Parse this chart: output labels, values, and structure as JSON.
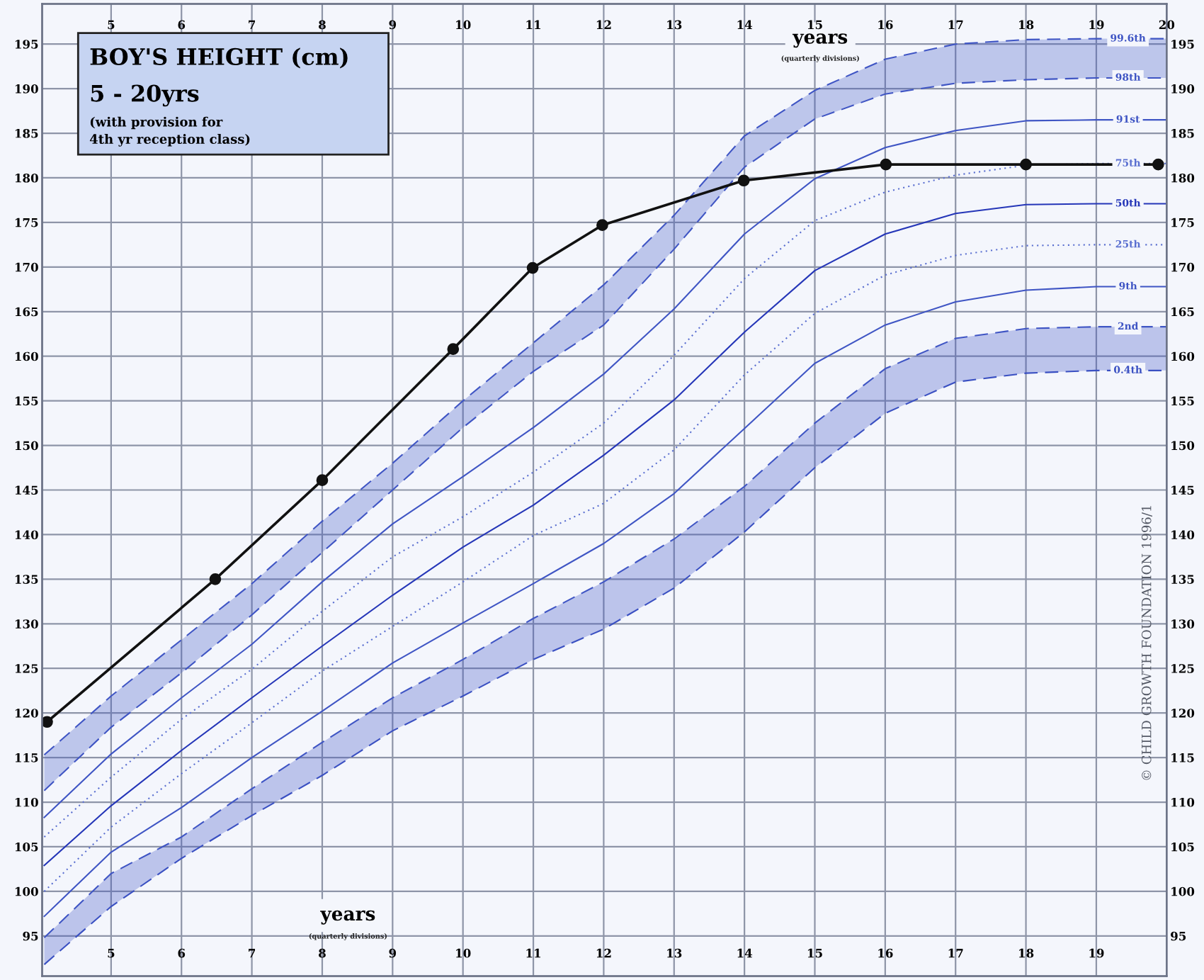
{
  "chart_data": {
    "type": "line",
    "title": "BOY'S HEIGHT (cm)",
    "subtitle": "5 - 20yrs",
    "xlabel": "years",
    "x2label": "years",
    "annotations": [
      "(with provision for\n4th yr reception class)",
      "(quarterly divisions)",
      "(quarterly divisions)",
      "© CHILD GROWTH FOUNDATION 1996/1"
    ],
    "x": [
      4.05,
      5,
      6,
      7,
      8,
      9,
      10,
      11,
      12,
      13,
      14,
      15,
      16,
      17,
      18,
      19,
      20
    ],
    "series": [
      {
        "name": "99.6th",
        "color": "#3f55c4",
        "line_style": "dashed",
        "values": [
          115.3,
          121.9,
          128.2,
          134.5,
          141.5,
          148.0,
          155.0,
          161.5,
          168.0,
          175.8,
          184.7,
          189.8,
          193.3,
          195.0,
          195.5,
          195.6,
          195.6
        ],
        "lower": [
          111.3,
          118.4,
          124.5,
          131.0,
          138.0,
          145.0,
          152.0,
          158.3,
          163.5,
          172.0,
          181.2,
          186.6,
          189.4,
          190.6,
          191.0,
          191.2,
          191.2
        ],
        "upper": [
          115.3,
          121.9,
          128.2,
          134.5,
          141.5,
          148.0,
          155.0,
          161.5,
          168.0,
          175.8,
          184.7,
          189.8,
          193.3,
          195.0,
          195.5,
          195.6,
          195.6
        ]
      },
      {
        "name": "98th",
        "color": "#3f55c4",
        "line_style": "dashed",
        "values": [
          111.3,
          118.4,
          124.5,
          131.0,
          138.0,
          145.0,
          152.0,
          158.3,
          163.5,
          172.0,
          181.2,
          186.6,
          189.4,
          190.6,
          191.0,
          191.2,
          191.2
        ]
      },
      {
        "name": "91st",
        "color": "#3f55c4",
        "line_style": "solid",
        "values": [
          108.3,
          115.4,
          121.7,
          127.7,
          134.7,
          141.2,
          146.5,
          152.0,
          158.0,
          165.3,
          173.7,
          179.9,
          183.4,
          185.3,
          186.4,
          186.5,
          186.5
        ]
      },
      {
        "name": "75th",
        "color": "#5a6fd0",
        "line_style": "dotted",
        "values": [
          106.1,
          112.8,
          119.3,
          124.9,
          131.4,
          137.5,
          142.0,
          147.0,
          152.5,
          160.1,
          168.7,
          175.2,
          178.4,
          180.3,
          181.4,
          181.6,
          181.6
        ]
      },
      {
        "name": "50th",
        "color": "#2536b8",
        "line_style": "solid",
        "values": [
          102.9,
          109.6,
          115.8,
          121.7,
          127.5,
          133.2,
          138.6,
          143.3,
          148.9,
          155.1,
          162.7,
          169.6,
          173.7,
          176.0,
          177.0,
          177.1,
          177.1
        ]
      },
      {
        "name": "25th",
        "color": "#5a6fd0",
        "line_style": "dotted",
        "values": [
          100.0,
          107.2,
          113.2,
          118.9,
          124.7,
          129.7,
          134.7,
          139.9,
          143.5,
          149.5,
          157.9,
          164.8,
          169.1,
          171.3,
          172.4,
          172.5,
          172.5
        ]
      },
      {
        "name": "9th",
        "color": "#3f55c4",
        "line_style": "solid",
        "values": [
          97.2,
          104.4,
          109.4,
          115.0,
          120.2,
          125.6,
          130.1,
          134.5,
          139.0,
          144.6,
          151.9,
          159.2,
          163.5,
          166.1,
          167.4,
          167.8,
          167.8
        ]
      },
      {
        "name": "2nd",
        "color": "#3f55c4",
        "line_style": "dashed",
        "values": [
          94.8,
          102.0,
          106.1,
          111.5,
          116.7,
          121.7,
          126.0,
          130.6,
          134.7,
          139.5,
          145.4,
          152.5,
          158.6,
          162.0,
          163.1,
          163.3,
          163.3
        ]
      },
      {
        "name": "0.4th",
        "color": "#3a50c2",
        "line_style": "dashed",
        "values": [
          91.8,
          98.3,
          103.7,
          108.5,
          113.0,
          118.0,
          121.9,
          126.0,
          129.4,
          134.0,
          140.3,
          147.5,
          153.6,
          157.1,
          158.1,
          158.4,
          158.4
        ],
        "lower": [
          91.8,
          98.3,
          103.7,
          108.5,
          113.0,
          118.0,
          121.9,
          126.0,
          129.4,
          134.0,
          140.3,
          147.5,
          153.6,
          157.1,
          158.1,
          158.4,
          158.4
        ],
        "upper": [
          94.8,
          102.0,
          106.1,
          111.5,
          116.7,
          121.7,
          126.0,
          130.6,
          134.7,
          139.5,
          145.4,
          152.5,
          158.6,
          162.0,
          163.1,
          163.3,
          163.3
        ]
      },
      {
        "color": "#111111",
        "line_style": "solid",
        "marker": "circle",
        "x": [
          4.09,
          6.48,
          8.0,
          9.86,
          10.99,
          11.98,
          13.99,
          16.01,
          18.0,
          19.88
        ],
        "values": [
          119.0,
          135.0,
          146.1,
          160.8,
          169.9,
          174.7,
          179.7,
          181.5,
          181.5,
          181.5
        ]
      }
    ],
    "xlim": [
      4.02,
      20
    ],
    "xticks": [
      5,
      6,
      7,
      8,
      9,
      10,
      11,
      12,
      13,
      14,
      15,
      16,
      17,
      18,
      19
    ],
    "x2lim": [
      4.02,
      20
    ],
    "x2ticks": [
      5,
      6,
      7,
      8,
      9,
      10,
      11,
      12,
      13,
      14,
      15,
      16,
      17,
      18,
      19,
      20
    ],
    "ylim": [
      90.5,
      199.5
    ],
    "yticks": [
      95,
      100,
      105,
      110,
      115,
      120,
      125,
      130,
      135,
      140,
      145,
      150,
      155,
      160,
      165,
      170,
      175,
      180,
      185,
      190,
      195
    ],
    "y2lim": [
      90.5,
      199.5
    ],
    "y2ticks": [
      95,
      100,
      105,
      110,
      115,
      120,
      125,
      130,
      135,
      140,
      145,
      150,
      155,
      160,
      165,
      170,
      175,
      180,
      185,
      190,
      195
    ],
    "grid": true,
    "legend": false
  }
}
